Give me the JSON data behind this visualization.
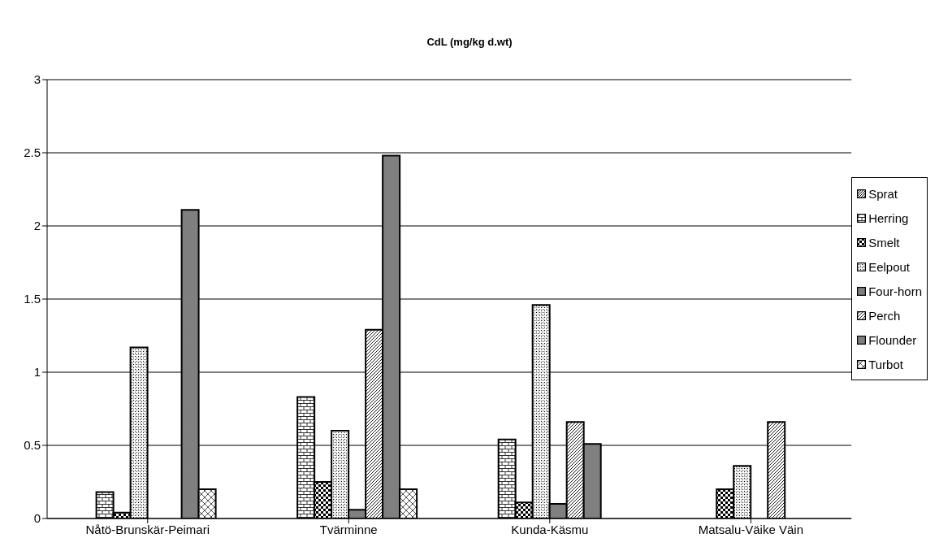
{
  "chart_data": {
    "type": "bar",
    "title": "CdL (mg/kg d.wt)",
    "categories": [
      "Nåtö-Brunskär-Peimari",
      "Tvärminne",
      "Kunda-Käsmu",
      "Matsalu-Väike Väin"
    ],
    "series": [
      {
        "name": "Sprat",
        "color": "#000000",
        "values": [
          null,
          null,
          null,
          null
        ]
      },
      {
        "name": "Herring",
        "color": "#000000",
        "values": [
          0.18,
          0.83,
          0.54,
          null
        ]
      },
      {
        "name": "Smelt",
        "color": "#000000",
        "values": [
          0.04,
          0.25,
          0.11,
          0.2
        ]
      },
      {
        "name": "Eelpout",
        "color": "#000000",
        "values": [
          1.17,
          0.6,
          1.46,
          0.36
        ]
      },
      {
        "name": "Four-horn",
        "color": "#000000",
        "values": [
          null,
          0.06,
          0.1,
          null
        ]
      },
      {
        "name": "Perch",
        "color": "#000000",
        "values": [
          null,
          1.29,
          0.66,
          0.66
        ]
      },
      {
        "name": "Flounder",
        "color": "#000000",
        "values": [
          2.11,
          2.48,
          0.51,
          null
        ]
      },
      {
        "name": "Turbot",
        "color": "#000000",
        "values": [
          0.2,
          0.2,
          null,
          null
        ]
      }
    ],
    "ylim": [
      0,
      3
    ],
    "yticks": [
      0,
      0.5,
      1,
      1.5,
      2,
      2.5,
      3
    ],
    "grid": "y",
    "legend": "right"
  }
}
